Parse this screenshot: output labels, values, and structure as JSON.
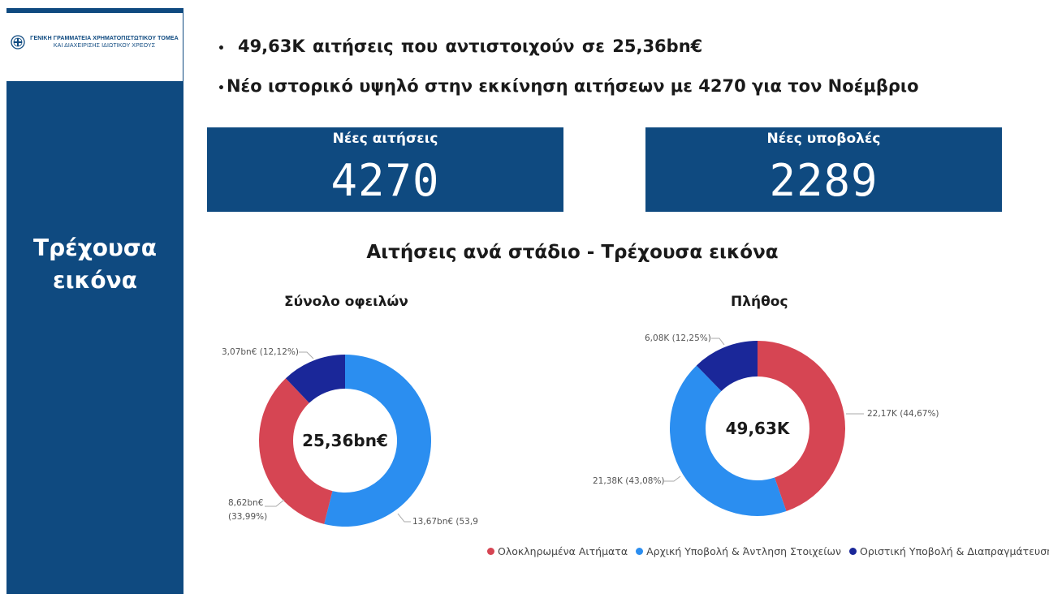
{
  "logo": {
    "line1": "ΓΕΝΙΚΗ ΓΡΑΜΜΑΤΕΙΑ ΧΡΗΜΑΤΟΠΙΣΤΩΤΙΚΟΥ ΤΟΜΕΑ",
    "line2": "ΚΑΙ ΔΙΑΧΕΙΡΙΣΗΣ ΙΔΙΩΤΙΚΟΥ ΧΡΕΟΥΣ"
  },
  "sidebar": {
    "title_line1": "Τρέχουσα",
    "title_line2": "εικόνα"
  },
  "bullets": {
    "b1": "49,63K  αιτήσεις που αντιστοιχούν σε  25,36bn€",
    "b2": "Νέο ιστορικό υψηλό στην εκκίνηση αιτήσεων με  4270  για τον Νοέμβριο"
  },
  "kpis": {
    "new_applications": {
      "label": "Νέες αιτήσεις",
      "value": "4270"
    },
    "new_submissions": {
      "label": "Νέες υποβολές",
      "value": "2289"
    }
  },
  "section_title": "Αιτήσεις ανά στάδιο - Τρέχουσα εικόνα",
  "colors": {
    "completed": "#d64553",
    "initial": "#2b8ef0",
    "final": "#1a2799",
    "brand": "#0f4a80"
  },
  "chart_data": [
    {
      "type": "pie",
      "title": "Σύνολο οφειλών",
      "center_label": "25,36bn€",
      "categories": [
        "Ολοκληρωμένα Αιτήματα",
        "Αρχική Υποβολή & Άντληση Στοιχείων",
        "Οριστική Υποβολή & Διαπραγμάτευση"
      ],
      "values": [
        8.62,
        13.67,
        3.07
      ],
      "percent": [
        33.99,
        53.9,
        12.12
      ],
      "labels": [
        "8,62bn€",
        "13,67bn€ (53,9",
        "3,07bn€ (12,12%)"
      ],
      "label_line2": [
        "(33,99%)",
        "",
        ""
      ]
    },
    {
      "type": "pie",
      "title": "Πλήθος",
      "center_label": "49,63K",
      "categories": [
        "Ολοκληρωμένα Αιτήματα",
        "Αρχική Υποβολή & Άντληση Στοιχείων",
        "Οριστική Υποβολή & Διαπραγμάτευση"
      ],
      "values": [
        22.17,
        21.38,
        6.08
      ],
      "percent": [
        44.67,
        43.08,
        12.25
      ],
      "labels": [
        "22,17K (44,67%)",
        "21,38K (43,08%)",
        "6,08K (12,25%)"
      ]
    }
  ],
  "legend": [
    {
      "label": "Ολοκληρωμένα Αιτήματα",
      "color": "#d64553"
    },
    {
      "label": "Αρχική Υποβολή & Άντληση Στοιχείων",
      "color": "#2b8ef0"
    },
    {
      "label": "Οριστική Υποβολή & Διαπραγμάτευση",
      "color": "#1a2799"
    }
  ]
}
